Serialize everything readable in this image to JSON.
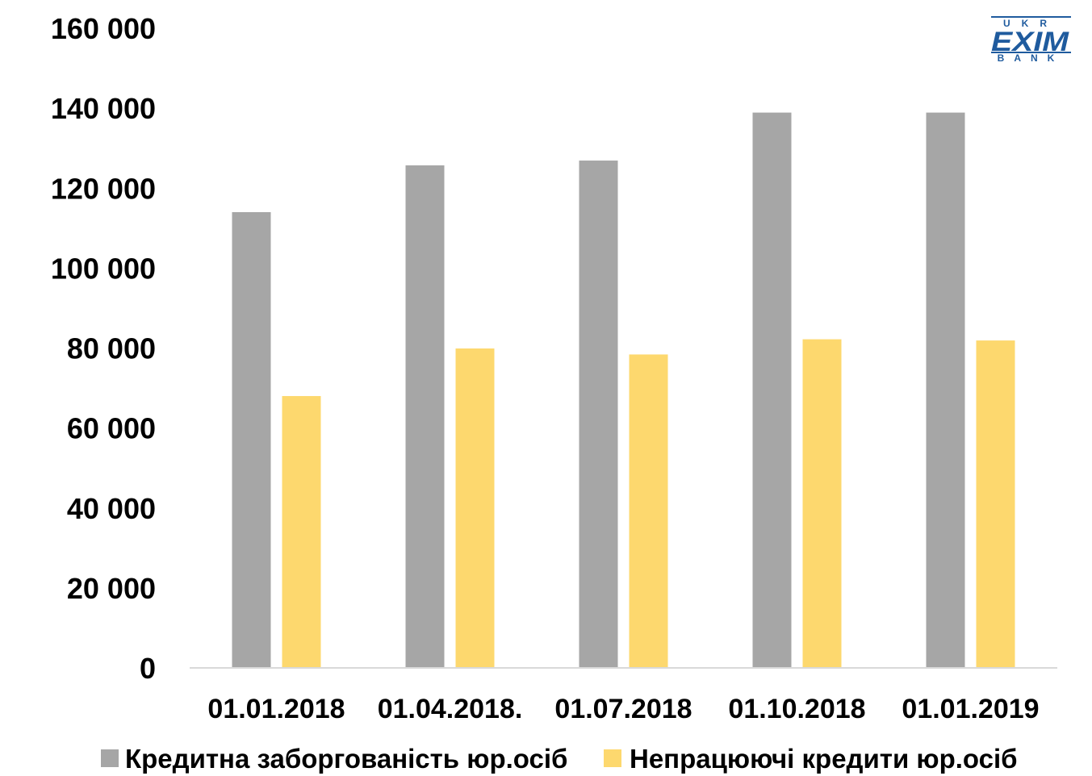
{
  "colors": {
    "series_1": "#a6a6a6",
    "series_2": "#fdd86e",
    "axis": "#d9d9d9",
    "logo": "#1f5b9e"
  },
  "logo": {
    "top": "UKR",
    "main": "EXIM",
    "bottom": "BANK"
  },
  "chart_data": {
    "type": "bar",
    "title": "",
    "xlabel": "",
    "ylabel": "",
    "categories": [
      "01.01.2018",
      "01.04.2018.",
      "01.07.2018",
      "01.10.2018",
      "01.01.2019"
    ],
    "ylim": [
      0,
      160000
    ],
    "yticks": [
      0,
      20000,
      40000,
      60000,
      80000,
      100000,
      120000,
      140000,
      160000
    ],
    "ytick_labels": [
      "0",
      "20 000",
      "40 000",
      "60 000",
      "80 000",
      "100 000",
      "120 000",
      "140 000",
      "160 000"
    ],
    "grid": false,
    "legend_position": "bottom",
    "series": [
      {
        "name": "Кредитна заборгованість юр.осіб",
        "values": [
          114000,
          125700,
          126900,
          138900,
          138900
        ]
      },
      {
        "name": "Непрацюючі кредити юр.осіб",
        "values": [
          68000,
          79900,
          78400,
          82200,
          81900
        ]
      }
    ]
  }
}
